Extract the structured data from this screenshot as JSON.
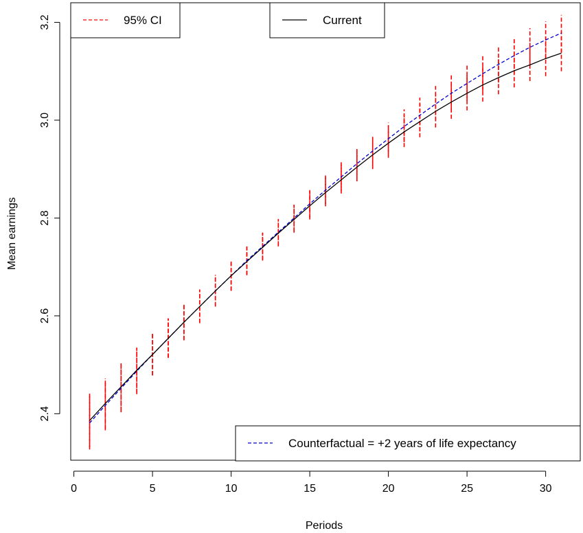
{
  "chart_data": {
    "type": "line",
    "xlabel": "Periods",
    "ylabel": "Mean earnings",
    "xlim": [
      -0.2,
      32.2
    ],
    "ylim": [
      2.305,
      3.24
    ],
    "x_ticks": [
      0,
      5,
      10,
      15,
      20,
      25,
      30
    ],
    "y_ticks": [
      2.4,
      2.6,
      2.8,
      3.0,
      3.2
    ],
    "x_tick_labels": [
      "0",
      "5",
      "10",
      "15",
      "20",
      "25",
      "30"
    ],
    "y_tick_labels": [
      "2.4",
      "2.6",
      "2.8",
      "3.0",
      "3.2"
    ],
    "x": [
      1,
      2,
      3,
      4,
      5,
      6,
      7,
      8,
      9,
      10,
      11,
      12,
      13,
      14,
      15,
      16,
      17,
      18,
      19,
      20,
      21,
      22,
      23,
      24,
      25,
      26,
      27,
      28,
      29,
      30,
      31
    ],
    "series": [
      {
        "name": "Current",
        "color": "#000000",
        "style": "solid",
        "values": [
          2.386,
          2.421,
          2.455,
          2.489,
          2.521,
          2.554,
          2.587,
          2.619,
          2.651,
          2.682,
          2.711,
          2.74,
          2.769,
          2.797,
          2.825,
          2.852,
          2.878,
          2.904,
          2.929,
          2.953,
          2.976,
          2.997,
          3.018,
          3.037,
          3.055,
          3.072,
          3.087,
          3.101,
          3.113,
          3.126,
          3.137
        ],
        "ci_lower": [
          2.332,
          2.37,
          2.406,
          2.443,
          2.479,
          2.515,
          2.551,
          2.586,
          2.62,
          2.652,
          2.683,
          2.713,
          2.742,
          2.77,
          2.797,
          2.824,
          2.85,
          2.875,
          2.9,
          2.923,
          2.945,
          2.965,
          2.985,
          3.003,
          3.02,
          3.038,
          3.053,
          3.067,
          3.08,
          3.09,
          3.1
        ],
        "ci_upper": [
          2.441,
          2.472,
          2.503,
          2.535,
          2.564,
          2.595,
          2.624,
          2.654,
          2.684,
          2.714,
          2.741,
          2.77,
          2.798,
          2.827,
          2.855,
          2.883,
          2.91,
          2.937,
          2.963,
          2.988,
          3.011,
          3.034,
          3.054,
          3.075,
          3.095,
          3.112,
          3.127,
          3.143,
          3.158,
          3.17,
          3.18
        ]
      },
      {
        "name": "Counterfactual = +2 years of life expectancy",
        "color": "#0000cc",
        "style": "dashed",
        "values": [
          2.381,
          2.417,
          2.452,
          2.487,
          2.521,
          2.554,
          2.587,
          2.619,
          2.651,
          2.682,
          2.713,
          2.742,
          2.771,
          2.8,
          2.829,
          2.857,
          2.884,
          2.911,
          2.937,
          2.962,
          2.987,
          3.01,
          3.033,
          3.055,
          3.075,
          3.095,
          3.114,
          3.132,
          3.149,
          3.164,
          3.178
        ],
        "ci_lower": [
          2.327,
          2.366,
          2.403,
          2.44,
          2.478,
          2.514,
          2.55,
          2.585,
          2.619,
          2.651,
          2.684,
          2.715,
          2.744,
          2.773,
          2.801,
          2.829,
          2.856,
          2.882,
          2.907,
          2.931,
          2.955,
          2.977,
          2.999,
          3.02,
          3.04,
          3.059,
          3.077,
          3.094,
          3.11,
          3.125,
          3.138
        ],
        "ci_upper": [
          2.436,
          2.468,
          2.501,
          2.534,
          2.564,
          2.594,
          2.624,
          2.653,
          2.683,
          2.713,
          2.742,
          2.77,
          2.798,
          2.827,
          2.857,
          2.887,
          2.914,
          2.942,
          2.968,
          2.995,
          3.022,
          3.046,
          3.07,
          3.093,
          3.113,
          3.133,
          3.152,
          3.17,
          3.188,
          3.202,
          3.215
        ]
      }
    ],
    "ci_color": "#ff0000",
    "legends": [
      {
        "label": "95% CI",
        "color": "#ff0000",
        "style": "dashed",
        "placement": "top-left"
      },
      {
        "label": "Current",
        "color": "#000000",
        "style": "solid",
        "placement": "top-center"
      },
      {
        "label": "Counterfactual = +2 years of life expectancy",
        "color": "#0000cc",
        "style": "dashed",
        "placement": "bottom-right"
      }
    ],
    "grid": false
  }
}
